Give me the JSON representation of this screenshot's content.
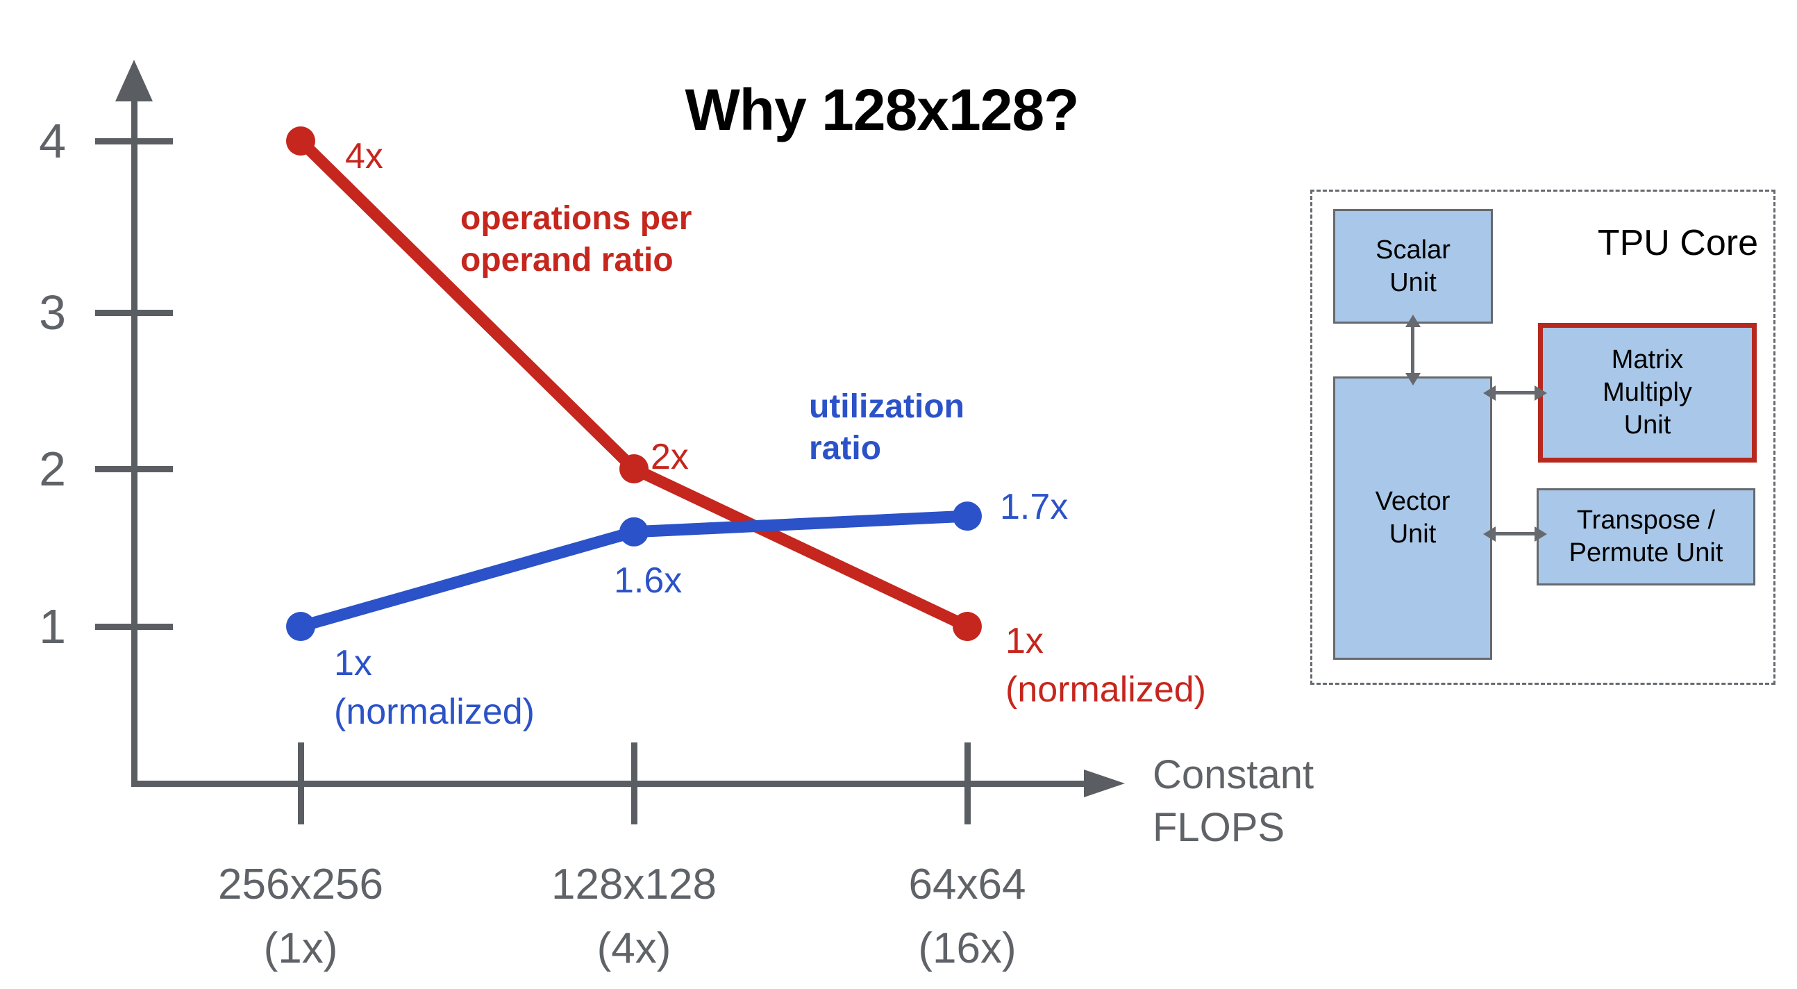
{
  "title": "Why 128x128?",
  "colors": {
    "red": "#c5261d",
    "blue": "#2b52c8",
    "gray": "#5f6368",
    "axis": "#5a5e62",
    "black": "#000000"
  },
  "chart_data": {
    "type": "line",
    "title": "Why 128x128?",
    "x_axis_label": "Constant FLOPS",
    "x_axis_label_lines": [
      "Constant",
      "FLOPS"
    ],
    "x_tick_labels": [
      [
        "256x256",
        "(1x)"
      ],
      [
        "128x128",
        "(4x)"
      ],
      [
        "64x64",
        "(16x)"
      ]
    ],
    "y_ticks": [
      1,
      2,
      3,
      4
    ],
    "ylim": [
      0,
      4.5
    ],
    "grid": false,
    "legend_position": "inline-labels",
    "series": [
      {
        "name": "operations per operand ratio",
        "name_lines": [
          "operations per",
          "operand ratio"
        ],
        "color": "#c5261d",
        "values": [
          4,
          2,
          1
        ],
        "point_labels": [
          "4x",
          "2x",
          "1x"
        ],
        "point_sublabels": [
          "",
          "",
          "(normalized)"
        ]
      },
      {
        "name": "utilization ratio",
        "name_lines": [
          "utilization",
          "ratio"
        ],
        "color": "#2b52c8",
        "values": [
          1,
          1.6,
          1.7
        ],
        "point_labels": [
          "1x",
          "1.6x",
          "1.7x"
        ],
        "point_sublabels": [
          "(normalized)",
          "",
          ""
        ]
      }
    ]
  },
  "diagram": {
    "title": "TPU Core",
    "boxes": [
      {
        "id": "scalar",
        "label_lines": [
          "Scalar",
          "Unit"
        ],
        "highlight": false
      },
      {
        "id": "vector",
        "label_lines": [
          "Vector",
          "Unit"
        ],
        "highlight": false
      },
      {
        "id": "mmu",
        "label_lines": [
          "Matrix",
          "Multiply",
          "Unit"
        ],
        "highlight": true
      },
      {
        "id": "transpose",
        "label_lines": [
          "Transpose /",
          "Permute Unit"
        ],
        "highlight": false
      }
    ],
    "colors": {
      "box_fill": "#a9c7e8",
      "box_border": "#66696d",
      "highlight_border": "#b7291f",
      "dash_border": "#666a6e"
    }
  }
}
